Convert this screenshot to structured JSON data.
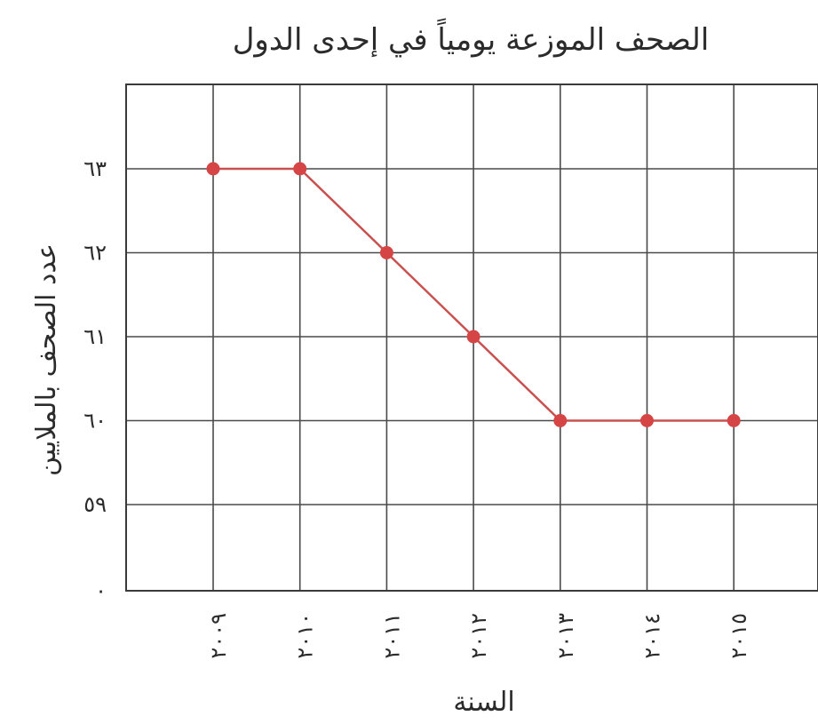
{
  "chart_data": {
    "type": "line",
    "title": "الصحف الموزعة يومياً في إحدى الدول",
    "xlabel": "السنة",
    "ylabel": "عدد الصحف بالملايين",
    "categories": [
      "٢٠٠٩",
      "٢٠١٠",
      "٢٠١١",
      "٢٠١٢",
      "٢٠١٣",
      "٢٠١٤",
      "٢٠١٥"
    ],
    "y_ticks": [
      "٠",
      "٥٩",
      "٦٠",
      "٦١",
      "٦٢",
      "٦٣"
    ],
    "y_tick_values": [
      58,
      59,
      60,
      61,
      62,
      63
    ],
    "series": [
      {
        "values": [
          63,
          63,
          62,
          61,
          60,
          60,
          60
        ]
      }
    ],
    "ylim": [
      58,
      64
    ],
    "grid": true,
    "axis_break": true,
    "colors": {
      "line": "#c9504f",
      "point": "#d64545",
      "grid": "#4a4a4a"
    }
  }
}
